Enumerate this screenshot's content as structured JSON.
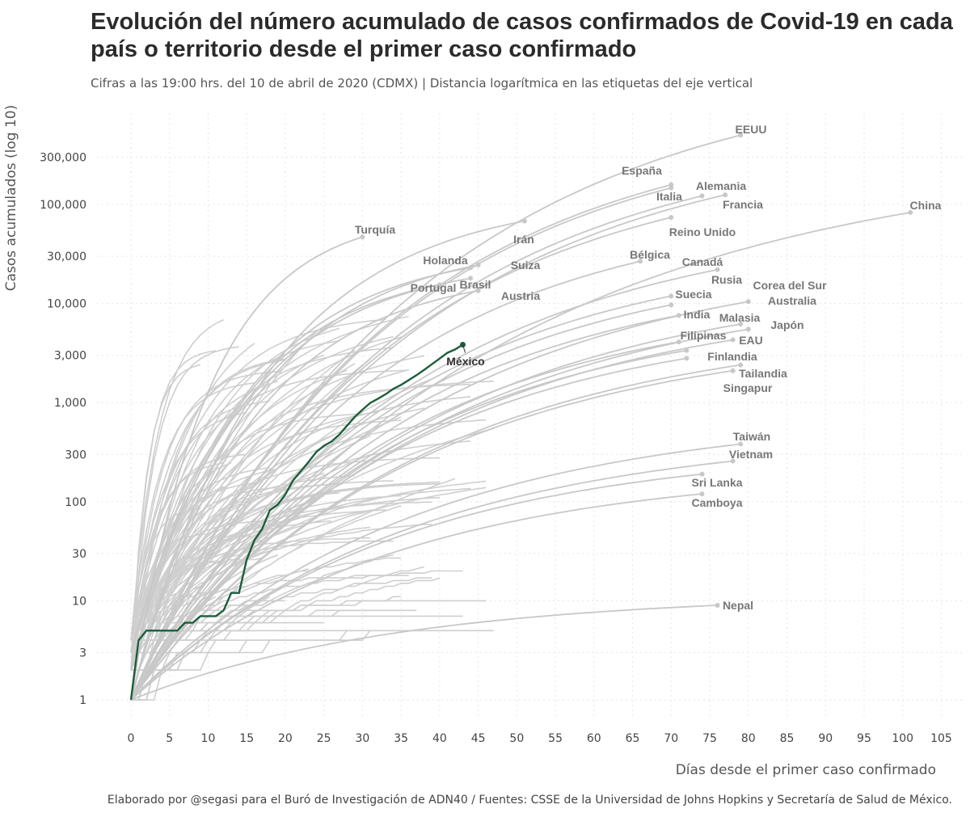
{
  "title": "Evolución del número acumulado de casos confirmados de Covid-19 en cada país o territorio desde el primer caso confirmado",
  "subtitle": "Cifras a las 19:00 hrs. del 10 de abril de 2020 (CDMX) | Distancia logarítmica en las etiquetas del eje vertical",
  "caption": "Elaborado por @segasi para el Buró de Investigación de ADN40 / Fuentes: CSSE de la Universidad de Johns Hopkins y Secretaría de Salud de México.",
  "colors": {
    "background_lines": "#c8c8c8",
    "highlight": "#1b5e3b",
    "labels": "#777777",
    "highlight_label": "#333333"
  },
  "chart_data": {
    "type": "line",
    "title": "Evolución del número acumulado de casos confirmados de Covid-19 en cada país o territorio desde el primer caso confirmado",
    "xlabel": "Días desde el primer caso confirmado",
    "ylabel": "Casos acumulados (log 10)",
    "y_scale": "log10",
    "xlim": [
      -4,
      107
    ],
    "ylim": [
      0.6,
      600000
    ],
    "grid": true,
    "x_ticks": [
      0,
      5,
      10,
      15,
      20,
      25,
      30,
      35,
      40,
      45,
      50,
      55,
      60,
      65,
      70,
      75,
      80,
      85,
      90,
      95,
      100,
      105
    ],
    "y_ticks": [
      {
        "value": 1,
        "label": "1"
      },
      {
        "value": 3,
        "label": "3"
      },
      {
        "value": 10,
        "label": "10"
      },
      {
        "value": 30,
        "label": "30"
      },
      {
        "value": 100,
        "label": "100"
      },
      {
        "value": 300,
        "label": "300"
      },
      {
        "value": 1000,
        "label": "1,000"
      },
      {
        "value": 3000,
        "label": "3,000"
      },
      {
        "value": 10000,
        "label": "10,000"
      },
      {
        "value": 30000,
        "label": "30,000"
      },
      {
        "value": 100000,
        "label": "100,000"
      },
      {
        "value": 300000,
        "label": "300,000"
      }
    ],
    "highlight": {
      "name": "México",
      "points": [
        [
          0,
          1
        ],
        [
          1,
          4
        ],
        [
          2,
          5
        ],
        [
          3,
          5
        ],
        [
          5,
          5
        ],
        [
          6,
          5
        ],
        [
          7,
          6
        ],
        [
          8,
          6
        ],
        [
          9,
          7
        ],
        [
          10,
          7
        ],
        [
          11,
          7
        ],
        [
          12,
          8
        ],
        [
          13,
          12
        ],
        [
          14,
          12
        ],
        [
          15,
          26
        ],
        [
          16,
          41
        ],
        [
          17,
          53
        ],
        [
          18,
          82
        ],
        [
          19,
          93
        ],
        [
          20,
          118
        ],
        [
          21,
          164
        ],
        [
          22,
          203
        ],
        [
          23,
          251
        ],
        [
          24,
          316
        ],
        [
          25,
          367
        ],
        [
          26,
          405
        ],
        [
          27,
          475
        ],
        [
          28,
          585
        ],
        [
          29,
          717
        ],
        [
          30,
          848
        ],
        [
          31,
          993
        ],
        [
          32,
          1094
        ],
        [
          33,
          1215
        ],
        [
          34,
          1378
        ],
        [
          35,
          1510
        ],
        [
          36,
          1688
        ],
        [
          37,
          1890
        ],
        [
          38,
          2143
        ],
        [
          39,
          2439
        ],
        [
          40,
          2785
        ],
        [
          41,
          3181
        ],
        [
          42,
          3441
        ],
        [
          43,
          3844
        ]
      ]
    },
    "labeled_series": [
      {
        "name": "EEUU",
        "end": [
          79,
          500000
        ]
      },
      {
        "name": "España",
        "end": [
          70,
          158000
        ]
      },
      {
        "name": "Italia",
        "end": [
          70,
          147000
        ]
      },
      {
        "name": "Alemania",
        "end": [
          74,
          122000
        ]
      },
      {
        "name": "Francia",
        "end": [
          77,
          125000
        ]
      },
      {
        "name": "China",
        "end": [
          101,
          83000
        ]
      },
      {
        "name": "Reino Unido",
        "end": [
          70,
          74000
        ]
      },
      {
        "name": "Irán",
        "end": [
          51,
          68000
        ]
      },
      {
        "name": "Turquía",
        "end": [
          30,
          47000
        ]
      },
      {
        "name": "Bélgica",
        "end": [
          66,
          26700
        ]
      },
      {
        "name": "Suiza",
        "end": [
          45,
          24500
        ]
      },
      {
        "name": "Holanda",
        "end": [
          44,
          23000
        ]
      },
      {
        "name": "Canadá",
        "end": [
          76,
          22000
        ]
      },
      {
        "name": "Brasil",
        "end": [
          44,
          18000
        ]
      },
      {
        "name": "Portugal",
        "end": [
          40,
          15500
        ]
      },
      {
        "name": "Austria",
        "end": [
          45,
          13500
        ]
      },
      {
        "name": "Rusia",
        "end": [
          70,
          11900
        ]
      },
      {
        "name": "Corea del Sur",
        "end": [
          80,
          10450
        ]
      },
      {
        "name": "Suecia",
        "end": [
          70,
          9700
        ]
      },
      {
        "name": "Australia",
        "end": [
          79,
          6200
        ]
      },
      {
        "name": "India",
        "end": [
          71,
          7600
        ]
      },
      {
        "name": "Malasia",
        "end": [
          78,
          4300
        ]
      },
      {
        "name": "Japón",
        "end": [
          80,
          5500
        ]
      },
      {
        "name": "Filipinas",
        "end": [
          71,
          4100
        ]
      },
      {
        "name": "EAU",
        "end": [
          72,
          3360
        ]
      },
      {
        "name": "Finlandia",
        "end": [
          72,
          2800
        ]
      },
      {
        "name": "Tailandia",
        "end": [
          79,
          2400
        ]
      },
      {
        "name": "Singapur",
        "end": [
          78,
          2100
        ]
      },
      {
        "name": "Taiwán",
        "end": [
          79,
          382
        ]
      },
      {
        "name": "Vietnam",
        "end": [
          78,
          257
        ]
      },
      {
        "name": "Sri Lanka",
        "end": [
          74,
          190
        ]
      },
      {
        "name": "Camboya",
        "end": [
          74,
          120
        ]
      },
      {
        "name": "Nepal",
        "end": [
          76,
          9
        ]
      }
    ]
  }
}
